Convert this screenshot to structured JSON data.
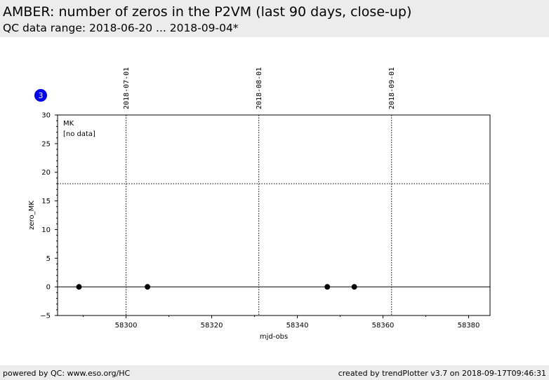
{
  "header": {
    "title": "AMBER: number of zeros in the P2VM (last 90 days, close-up)",
    "subtitle": "QC data range: 2018-06-20 ... 2018-09-04*"
  },
  "footer": {
    "left": "powered by QC: www.eso.org/HC",
    "right": "created by trendPlotter v3.7 on 2018-09-17T09:46:31"
  },
  "badge": {
    "label": "3",
    "color": "#0000ee"
  },
  "chart_data": {
    "type": "scatter",
    "xlabel": "mjd-obs",
    "ylabel": "zero_MK",
    "xlim": [
      58284,
      58385
    ],
    "ylim": [
      -5,
      30
    ],
    "x_ticks": [
      58300,
      58320,
      58340,
      58360,
      58380
    ],
    "y_ticks": [
      -5,
      0,
      5,
      10,
      15,
      20,
      25,
      30
    ],
    "panel_label": "MK",
    "panel_note": "[no data]",
    "date_markers": [
      {
        "label": "2018-07-01",
        "x": 58300.0
      },
      {
        "label": "2018-08-01",
        "x": 58331.0
      },
      {
        "label": "2018-09-01",
        "x": 58362.0
      }
    ],
    "threshold_line": 18,
    "reference_line": 0,
    "series": [
      {
        "x": [
          58289,
          58305,
          58347,
          58353.3
        ],
        "y": [
          0,
          0,
          0,
          0
        ]
      }
    ],
    "colors": {
      "points": "#000000",
      "frame": "#000000"
    }
  }
}
